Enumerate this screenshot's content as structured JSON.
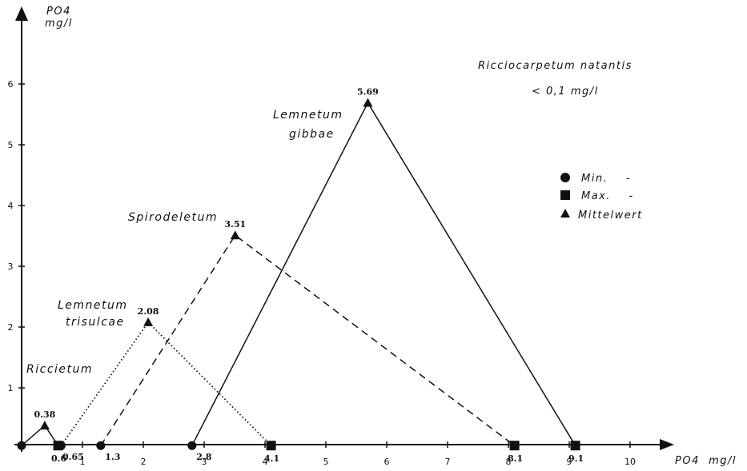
{
  "chart_data": {
    "type": "line",
    "x_axis": {
      "label": "PO4  mg/l",
      "ticks": [
        "1",
        "2",
        "3",
        "4",
        "5",
        "6",
        "7",
        "8",
        "9",
        "10"
      ],
      "range": [
        0,
        10.5
      ]
    },
    "y_axis": {
      "label_line1": "PO4",
      "label_line2": "mg/l",
      "ticks": [
        "1",
        "2",
        "3",
        "4",
        "5",
        "6"
      ],
      "range": [
        0,
        6.5
      ]
    },
    "y_baseline": 0.05,
    "series": [
      {
        "name": "Riccietum",
        "style": "solid",
        "min": 0.0,
        "mean": 0.38,
        "max": 0.6,
        "min_label": "",
        "mean_label": "0.38",
        "max_label": "0.6"
      },
      {
        "name_line1": "Lemnetum",
        "name_line2": "trisulcae",
        "style": "dotted",
        "min": 0.65,
        "mean": 2.08,
        "max": 4.1,
        "min_label": "0.65",
        "mean_label": "2.08",
        "max_label": "4.1"
      },
      {
        "name": "Spirodeletum",
        "style": "dashed",
        "min": 1.3,
        "mean": 3.51,
        "max": 8.1,
        "min_label": "1.3",
        "mean_label": "3.51",
        "max_label": "8.1"
      },
      {
        "name_line1": "Lemnetum",
        "name_line2": "gibbae",
        "style": "solid",
        "min": 2.8,
        "mean": 5.69,
        "max": 9.1,
        "min_label": "2.8",
        "mean_label": "5.69",
        "max_label": "9.1"
      }
    ],
    "legend": {
      "placement": "right",
      "items": [
        {
          "marker": "circle",
          "label": "Min.    -"
        },
        {
          "marker": "square",
          "label": "Max.    -"
        },
        {
          "marker": "triangle",
          "label": "Mittelwert"
        }
      ]
    },
    "annotation": {
      "line1": "Ricciocarpetum natantis",
      "line2": "< 0,1 mg/l"
    }
  }
}
